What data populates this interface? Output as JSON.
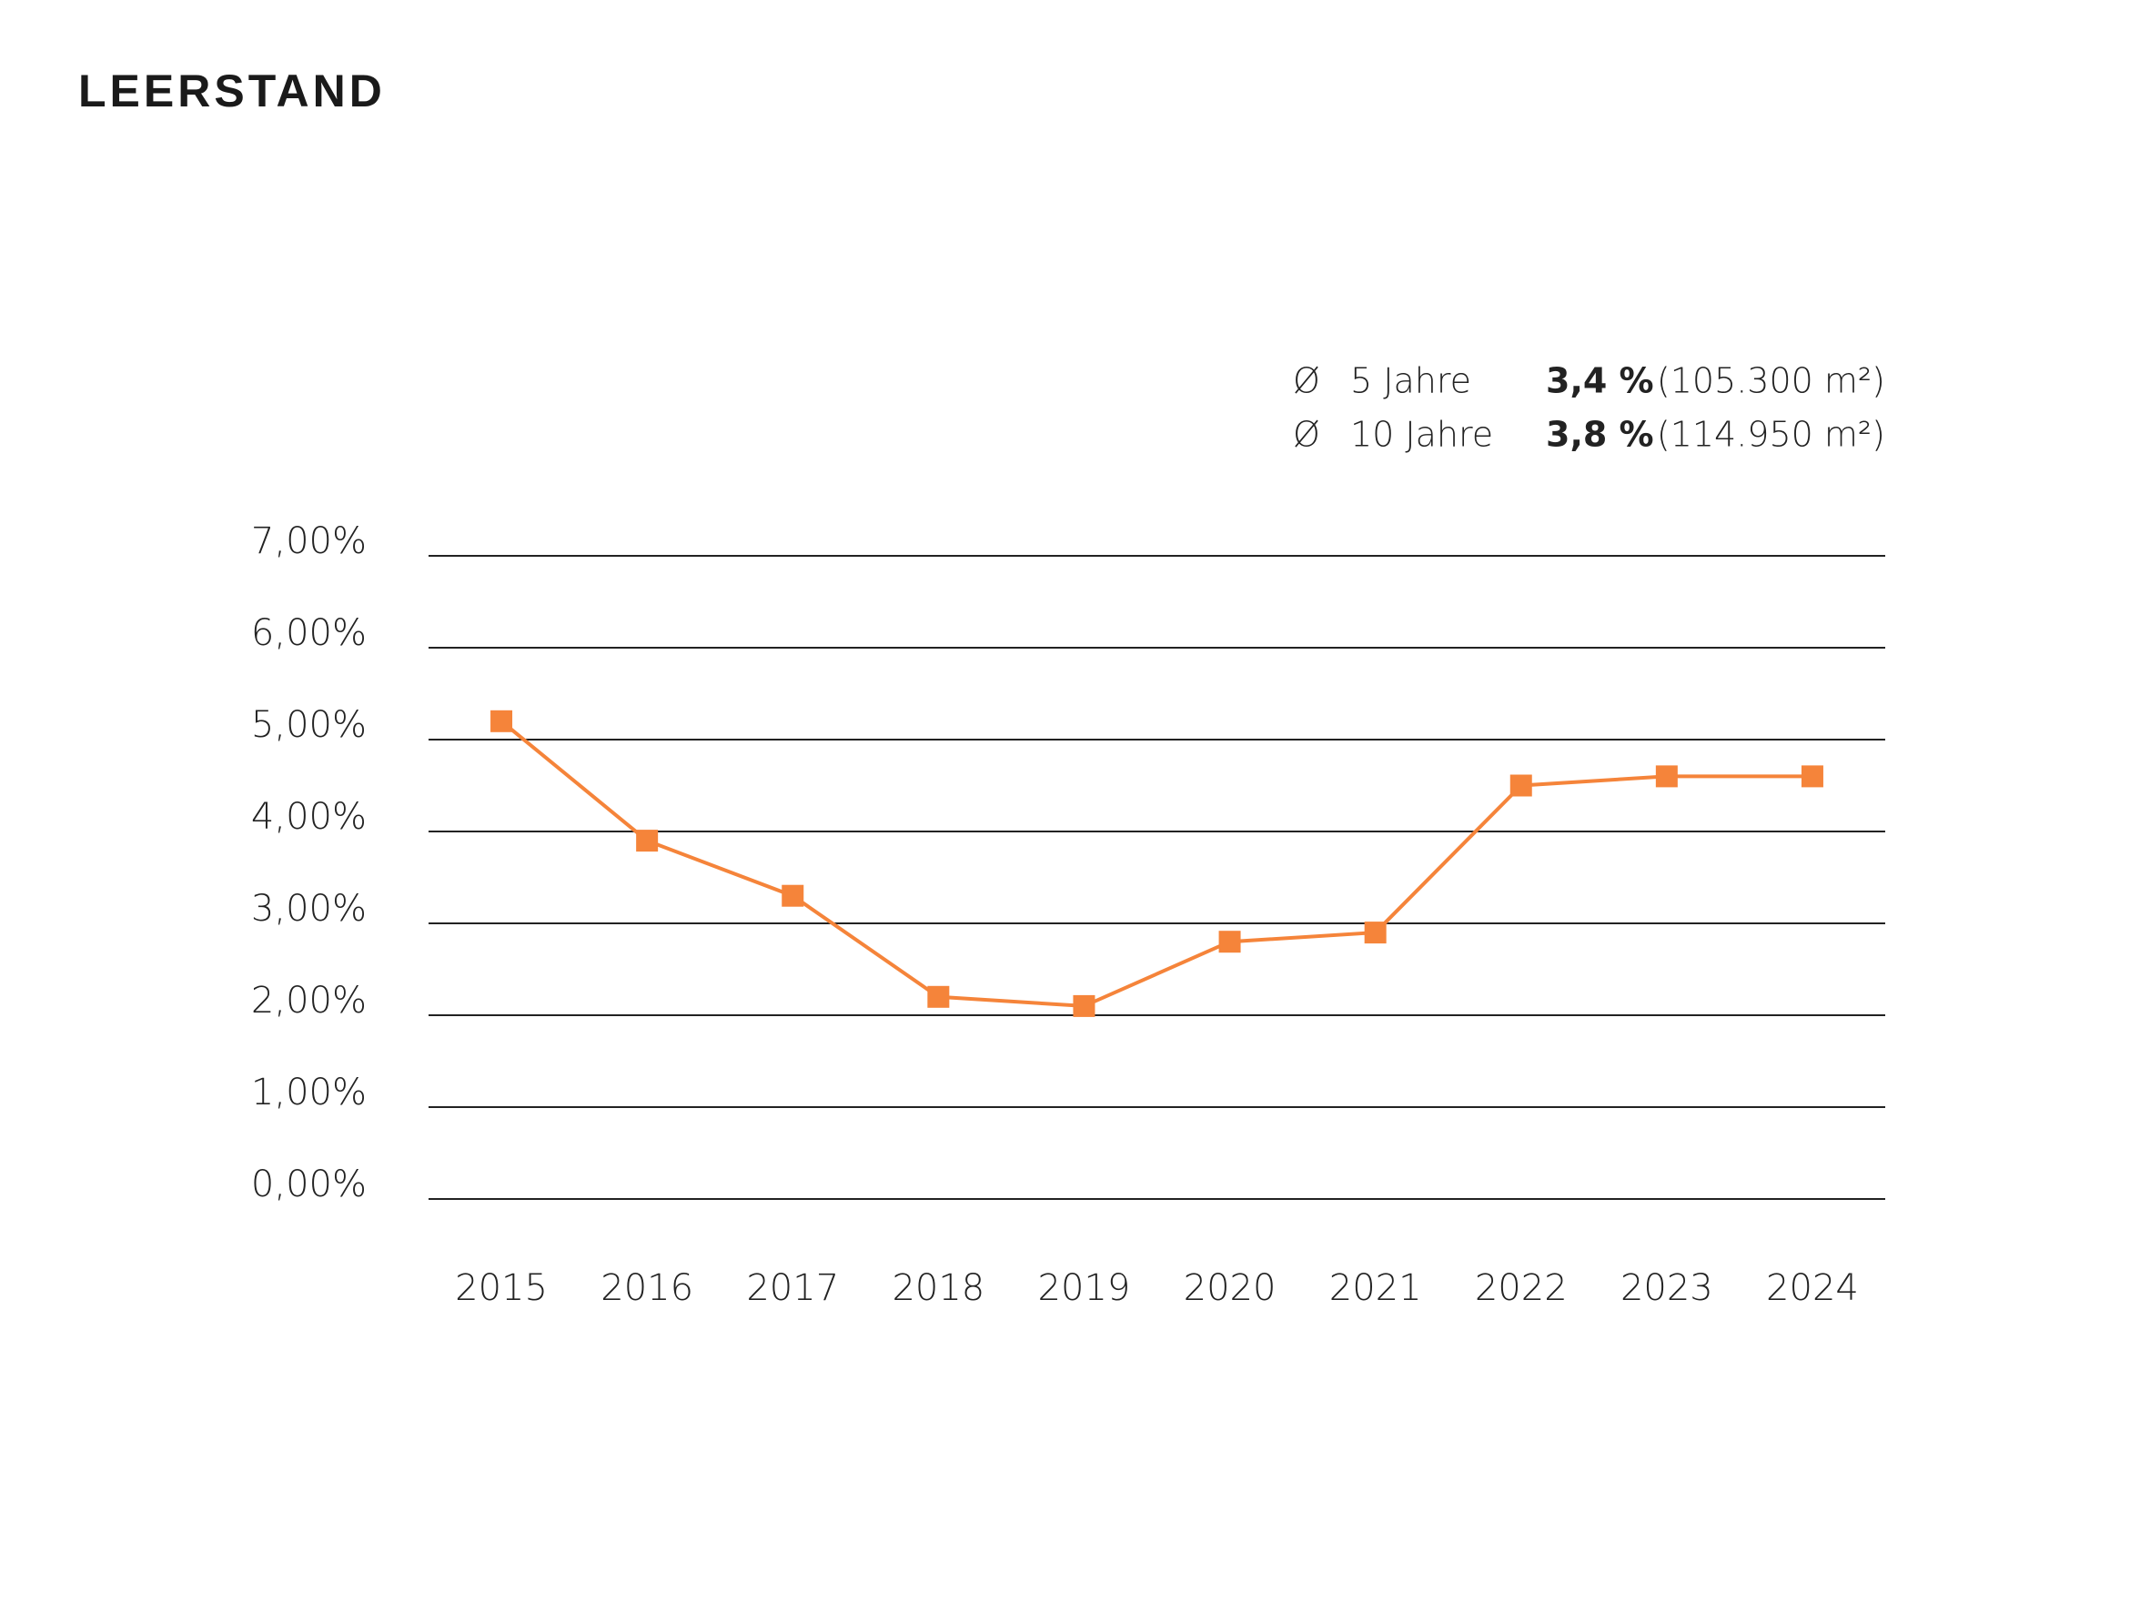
{
  "chart_data": {
    "type": "line",
    "title": "LEERSTAND",
    "annotations": [
      {
        "symbol": "Ø",
        "label": "5 Jahre",
        "rate": "3,4 %",
        "detail": "(105.300 m²)"
      },
      {
        "symbol": "Ø",
        "label": "10 Jahre",
        "rate": "3,8 %",
        "detail": "(114.950 m²)"
      }
    ],
    "categories": [
      "2015",
      "2016",
      "2017",
      "2018",
      "2019",
      "2020",
      "2021",
      "2022",
      "2023",
      "2024"
    ],
    "series": [
      {
        "color": "#f5843a",
        "values": [
          5.2,
          3.9,
          3.3,
          2.2,
          2.1,
          2.8,
          2.9,
          4.5,
          4.6,
          4.6
        ]
      }
    ],
    "ylim": [
      0,
      7
    ],
    "yticks": [
      {
        "value": 0,
        "label": "0,00%"
      },
      {
        "value": 1,
        "label": "1,00%"
      },
      {
        "value": 2,
        "label": "2,00%"
      },
      {
        "value": 3,
        "label": "3,00%"
      },
      {
        "value": 4,
        "label": "4,00%"
      },
      {
        "value": 5,
        "label": "5,00%"
      },
      {
        "value": 6,
        "label": "6,00%"
      },
      {
        "value": 7,
        "label": "7,00%"
      }
    ],
    "grid": true
  }
}
